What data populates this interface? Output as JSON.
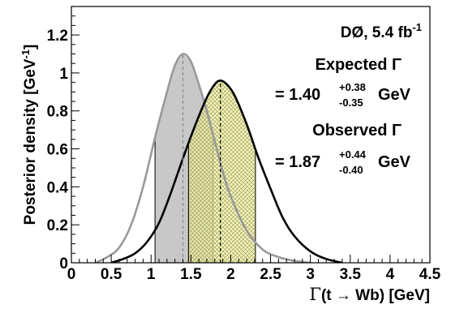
{
  "chart_data": {
    "type": "line",
    "title": "",
    "xlabel_lead": "Γ",
    "xlabel_rest": "(t → Wb) [GeV]",
    "ylabel": "Posterior density [GeV",
    "ylabel_sup": "-1",
    "ylabel_close": "]",
    "xlim": [
      0,
      4.5
    ],
    "ylim": [
      0,
      1.35
    ],
    "x_ticks": [
      "0",
      "0.5",
      "1",
      "1.5",
      "2",
      "2.5",
      "3",
      "3.5",
      "4",
      "4.5"
    ],
    "y_ticks": [
      "0",
      "0.2",
      "0.4",
      "0.6",
      "0.8",
      "1",
      "1.2"
    ],
    "experiment": "DØ, 5.4 fb",
    "experiment_sup": "-1",
    "series": [
      {
        "role": "expected",
        "color": "#999999",
        "fill": "#c8c8c8",
        "peak_x": 1.4,
        "peak_y": 1.1,
        "interval": [
          1.05,
          1.78
        ],
        "points": [
          [
            0.3,
            0.0
          ],
          [
            0.45,
            0.03
          ],
          [
            0.6,
            0.08
          ],
          [
            0.75,
            0.2
          ],
          [
            0.9,
            0.4
          ],
          [
            1.05,
            0.66
          ],
          [
            1.2,
            0.9
          ],
          [
            1.3,
            1.04
          ],
          [
            1.4,
            1.1
          ],
          [
            1.5,
            1.06
          ],
          [
            1.6,
            0.94
          ],
          [
            1.7,
            0.8
          ],
          [
            1.8,
            0.64
          ],
          [
            1.9,
            0.48
          ],
          [
            2.0,
            0.35
          ],
          [
            2.2,
            0.17
          ],
          [
            2.4,
            0.07
          ],
          [
            2.6,
            0.03
          ],
          [
            2.8,
            0.01
          ],
          [
            3.0,
            0.0
          ]
        ]
      },
      {
        "role": "observed",
        "color": "#000000",
        "fill": "#eeeeb0",
        "peak_x": 1.87,
        "peak_y": 0.96,
        "interval": [
          1.47,
          2.31
        ],
        "points": [
          [
            0.5,
            0.0
          ],
          [
            0.65,
            0.02
          ],
          [
            0.8,
            0.05
          ],
          [
            0.95,
            0.11
          ],
          [
            1.1,
            0.21
          ],
          [
            1.25,
            0.37
          ],
          [
            1.4,
            0.55
          ],
          [
            1.55,
            0.72
          ],
          [
            1.7,
            0.87
          ],
          [
            1.8,
            0.94
          ],
          [
            1.87,
            0.96
          ],
          [
            1.95,
            0.94
          ],
          [
            2.05,
            0.88
          ],
          [
            2.2,
            0.73
          ],
          [
            2.35,
            0.55
          ],
          [
            2.5,
            0.39
          ],
          [
            2.65,
            0.24
          ],
          [
            2.8,
            0.14
          ],
          [
            3.0,
            0.06
          ],
          [
            3.2,
            0.02
          ],
          [
            3.4,
            0.0
          ]
        ]
      }
    ],
    "legend": {
      "expected_label": "Expected Γ",
      "expected_value_prefix": "= 1.40",
      "expected_up": "+0.38",
      "expected_down": "-0.35",
      "observed_label": "Observed Γ",
      "observed_value_prefix": "= 1.87",
      "observed_up": "+0.44",
      "observed_down": "-0.40",
      "unit": "GeV"
    }
  }
}
